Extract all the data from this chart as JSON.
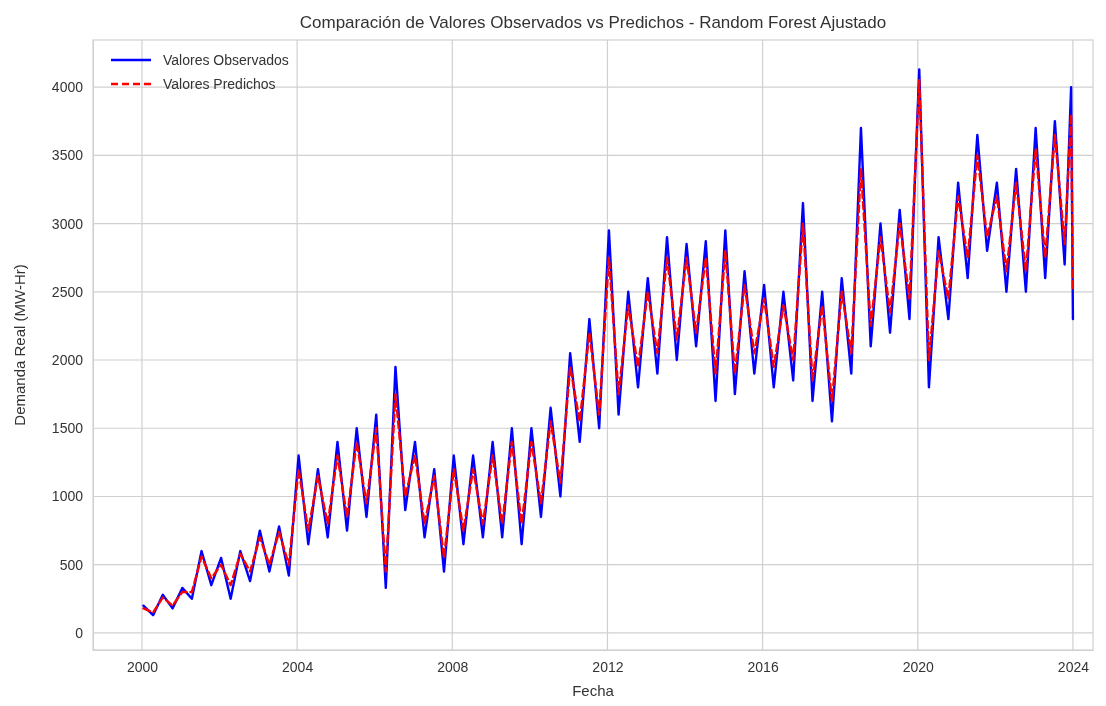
{
  "chart_data": {
    "type": "line",
    "title": "Comparación de Valores Observados vs Predichos - Random Forest Ajustado",
    "xlabel": "Fecha",
    "ylabel": "Demanda Real (MW-Hr)",
    "x": [
      "2000-01-15",
      "2000-04-15",
      "2000-07-15",
      "2000-10-15",
      "2001-01-15",
      "2001-04-15",
      "2001-07-15",
      "2001-10-15",
      "2002-01-15",
      "2002-04-15",
      "2002-07-15",
      "2002-10-15",
      "2003-01-15",
      "2003-04-15",
      "2003-07-15",
      "2003-10-15",
      "2004-01-15",
      "2004-04-15",
      "2004-07-15",
      "2004-10-15",
      "2005-01-15",
      "2005-04-15",
      "2005-07-15",
      "2005-10-15",
      "2006-01-15",
      "2006-04-15",
      "2006-07-15",
      "2006-10-15",
      "2007-01-15",
      "2007-04-15",
      "2007-07-15",
      "2007-10-15",
      "2008-01-15",
      "2008-04-15",
      "2008-07-15",
      "2008-10-15",
      "2009-01-15",
      "2009-04-15",
      "2009-07-15",
      "2009-10-15",
      "2010-01-15",
      "2010-04-15",
      "2010-07-15",
      "2010-10-15",
      "2011-01-15",
      "2011-04-15",
      "2011-07-15",
      "2011-10-15",
      "2012-01-15",
      "2012-04-15",
      "2012-07-15",
      "2012-10-15",
      "2013-01-15",
      "2013-04-15",
      "2013-07-15",
      "2013-10-15",
      "2014-01-15",
      "2014-04-15",
      "2014-07-15",
      "2014-10-15",
      "2015-01-15",
      "2015-04-15",
      "2015-07-15",
      "2015-10-15",
      "2016-01-15",
      "2016-04-15",
      "2016-07-15",
      "2016-10-15",
      "2017-01-15",
      "2017-04-15",
      "2017-07-15",
      "2017-10-15",
      "2018-01-15",
      "2018-04-15",
      "2018-07-15",
      "2018-10-15",
      "2019-01-15",
      "2019-04-15",
      "2019-07-15",
      "2019-10-15",
      "2020-01-15",
      "2020-04-15",
      "2020-07-15",
      "2020-10-15",
      "2021-01-15",
      "2021-04-15",
      "2021-07-15",
      "2021-10-15",
      "2022-01-15",
      "2022-04-15",
      "2022-07-15",
      "2022-10-15",
      "2023-01-15",
      "2023-04-15",
      "2023-07-15",
      "2023-10-15",
      "2023-12-15",
      "2024-01-01"
    ],
    "series": [
      {
        "name": "Valores Observados",
        "color": "#0000ff",
        "line_style": "solid",
        "values": [
          200,
          130,
          280,
          180,
          330,
          250,
          600,
          350,
          550,
          250,
          600,
          380,
          750,
          450,
          780,
          420,
          1300,
          650,
          1200,
          700,
          1400,
          750,
          1500,
          850,
          1600,
          330,
          1950,
          900,
          1400,
          700,
          1200,
          450,
          1300,
          650,
          1300,
          700,
          1400,
          700,
          1500,
          650,
          1500,
          850,
          1650,
          1000,
          2050,
          1400,
          2300,
          1500,
          2950,
          1600,
          2500,
          1800,
          2600,
          1900,
          2900,
          2000,
          2850,
          2100,
          2870,
          1700,
          2950,
          1750,
          2650,
          1900,
          2550,
          1800,
          2500,
          1850,
          3150,
          1700,
          2500,
          1550,
          2600,
          1900,
          3700,
          2100,
          3000,
          2200,
          3100,
          2300,
          4130,
          1800,
          2900,
          2300,
          3300,
          2600,
          3650,
          2800,
          3300,
          2500,
          3400,
          2500,
          3700,
          2600,
          3750,
          2700,
          4000,
          2300
        ]
      },
      {
        "name": "Valores Predichos",
        "color": "#ff0000",
        "line_style": "dashed",
        "values": [
          180,
          150,
          260,
          200,
          300,
          300,
          560,
          400,
          500,
          350,
          580,
          450,
          700,
          500,
          740,
          500,
          1200,
          750,
          1150,
          800,
          1300,
          850,
          1400,
          950,
          1500,
          450,
          1750,
          1000,
          1300,
          800,
          1150,
          550,
          1200,
          750,
          1200,
          800,
          1300,
          800,
          1400,
          800,
          1400,
          950,
          1550,
          1100,
          1950,
          1550,
          2200,
          1600,
          2750,
          1750,
          2400,
          1950,
          2500,
          2050,
          2750,
          2150,
          2750,
          2200,
          2750,
          1900,
          2800,
          1900,
          2550,
          2050,
          2450,
          1950,
          2400,
          2000,
          3000,
          1850,
          2400,
          1700,
          2500,
          2050,
          3400,
          2250,
          2900,
          2350,
          3000,
          2450,
          4050,
          2000,
          2800,
          2450,
          3200,
          2750,
          3500,
          2900,
          3200,
          2650,
          3300,
          2650,
          3550,
          2750,
          3650,
          2850,
          3800,
          2500
        ]
      }
    ],
    "xlim": [
      "1998-09-27",
      "2024-07-08"
    ],
    "xticks": [
      {
        "value": "2000-01-01",
        "label": "2000"
      },
      {
        "value": "2004-01-01",
        "label": "2004"
      },
      {
        "value": "2008-01-01",
        "label": "2008"
      },
      {
        "value": "2012-01-01",
        "label": "2012"
      },
      {
        "value": "2016-01-01",
        "label": "2016"
      },
      {
        "value": "2020-01-01",
        "label": "2020"
      },
      {
        "value": "2024-01-01",
        "label": "2024"
      }
    ],
    "ylim": [
      -125,
      4345
    ],
    "yticks": [
      0,
      500,
      1000,
      1500,
      2000,
      2500,
      3000,
      3500,
      4000
    ],
    "grid": true,
    "legend": "top left",
    "marker": "none"
  }
}
